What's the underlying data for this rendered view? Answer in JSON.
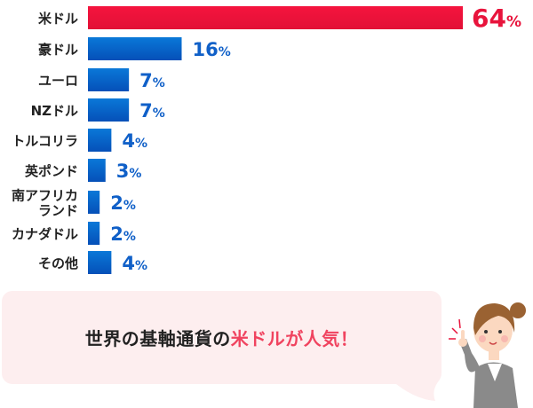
{
  "chart_data": {
    "type": "bar",
    "orientation": "horizontal",
    "categories": [
      "米ドル",
      "豪ドル",
      "ユーロ",
      "NZドル",
      "トルコリラ",
      "英ポンド",
      "南アフリカランド",
      "カナダドル",
      "その他"
    ],
    "category_lines": [
      [
        "米ドル"
      ],
      [
        "豪ドル"
      ],
      [
        "ユーロ"
      ],
      [
        "NZドル"
      ],
      [
        "トルコリラ"
      ],
      [
        "英ポンド"
      ],
      [
        "南アフリカ",
        "ランド"
      ],
      [
        "カナダドル"
      ],
      [
        "その他"
      ]
    ],
    "values": [
      64,
      16,
      7,
      7,
      4,
      3,
      2,
      2,
      4
    ],
    "unit": "%",
    "xlim": [
      0,
      64
    ],
    "grid": false,
    "colors": {
      "highlight": "#f0143c",
      "highlight_label": "#e8143c",
      "bar": "#0a5cc4",
      "bar_top": "#0a72d4",
      "label": "#1060c8"
    }
  },
  "message": {
    "before": "世界の基軸通貨の",
    "highlight": "米ドルが人気！",
    "highlight_color": "#f0435f",
    "bubble_color": "#fdeeef"
  }
}
